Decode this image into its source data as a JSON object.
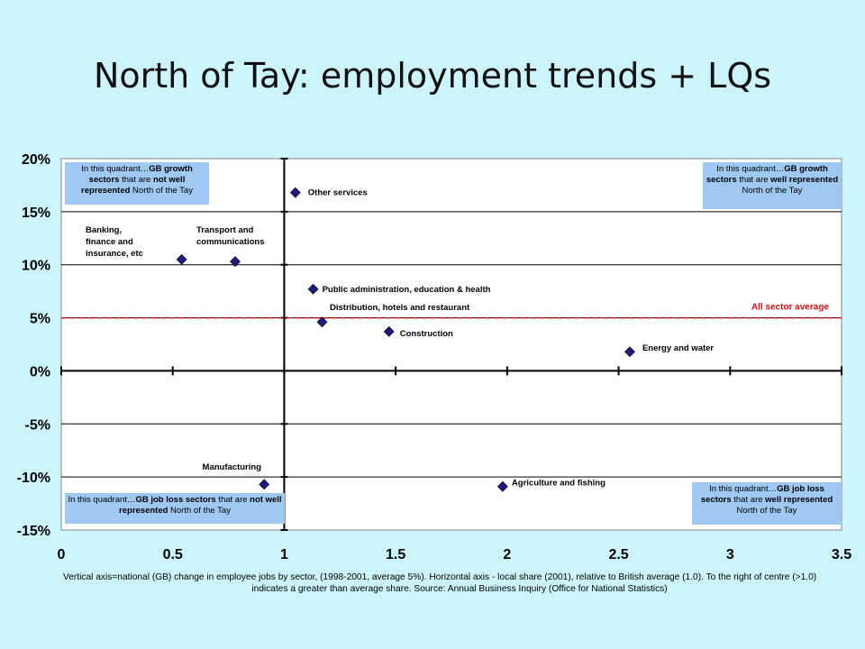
{
  "slide": {
    "title": "North of Tay: employment trends + LQs",
    "caption_line1": "Vertical axis=national (GB) change in employee jobs by sector, (1998-2001, average 5%). Horizontal axis - local share (2001), relative to British average (1.0). To the right of centre (>1.0)",
    "caption_line2": "indicates a greater than average share. Source: Annual Business Inquiry (Office for National Statistics)"
  },
  "quadrants": {
    "top_left": {
      "p1": "In this quadrant…",
      "b1": "GB growth sectors",
      "p2": " that are ",
      "b2": "not well represented",
      "p3": " North of the Tay"
    },
    "top_right": {
      "p1": "In this quadrant…",
      "b1": "GB growth sectors",
      "p2": " that are ",
      "b2": "well represented",
      "p3": " North of the Tay"
    },
    "bottom_left": {
      "p1": "In this quadrant…",
      "b1": "GB job loss sectors",
      "p2": " that are ",
      "b2": "not well represented",
      "p3": " North of the Tay"
    },
    "bottom_right": {
      "p1": "In this quadrant…",
      "b1": "GB job loss sectors",
      "p2": " that are ",
      "b2": "well represented",
      "p3": " North of the Tay"
    }
  },
  "colors": {
    "marker": "#1a1a80",
    "average_line": "#dd1111",
    "gridline": "#000000",
    "plot_bg": "#ffffff",
    "quadrant_box": "#9fc8f2"
  },
  "chart_data": {
    "type": "scatter",
    "xlim": [
      0,
      3.5
    ],
    "ylim": [
      -15,
      20
    ],
    "x_ticks": [
      0,
      0.5,
      1,
      1.5,
      2,
      2.5,
      3,
      3.5
    ],
    "x_tick_labels": [
      "0",
      "0.5",
      "1",
      "1.5",
      "2",
      "2.5",
      "3",
      "3.5"
    ],
    "y_ticks": [
      20,
      15,
      10,
      5,
      0,
      -5,
      -10,
      -15
    ],
    "y_tick_labels": [
      "20%",
      "15%",
      "10%",
      "5%",
      "0%",
      "-5%",
      "-10%",
      "-15%"
    ],
    "grid": true,
    "average_line": {
      "y": 5,
      "label": "All sector average"
    },
    "points": [
      {
        "label": "Other services",
        "x": 1.05,
        "y": 16.8
      },
      {
        "label": "Banking, finance and insurance, etc",
        "x": 0.54,
        "y": 10.5
      },
      {
        "label": "Transport and communications",
        "x": 0.78,
        "y": 10.3
      },
      {
        "label": "Public administration, education & health",
        "x": 1.13,
        "y": 7.7
      },
      {
        "label": "Distribution, hotels and restaurant",
        "x": 1.17,
        "y": 4.6
      },
      {
        "label": "Construction",
        "x": 1.47,
        "y": 3.7
      },
      {
        "label": "Energy and water",
        "x": 2.55,
        "y": 1.8
      },
      {
        "label": "Manufacturing",
        "x": 0.91,
        "y": -10.7
      },
      {
        "label": "Agriculture and fishing",
        "x": 1.98,
        "y": -10.9
      }
    ]
  }
}
